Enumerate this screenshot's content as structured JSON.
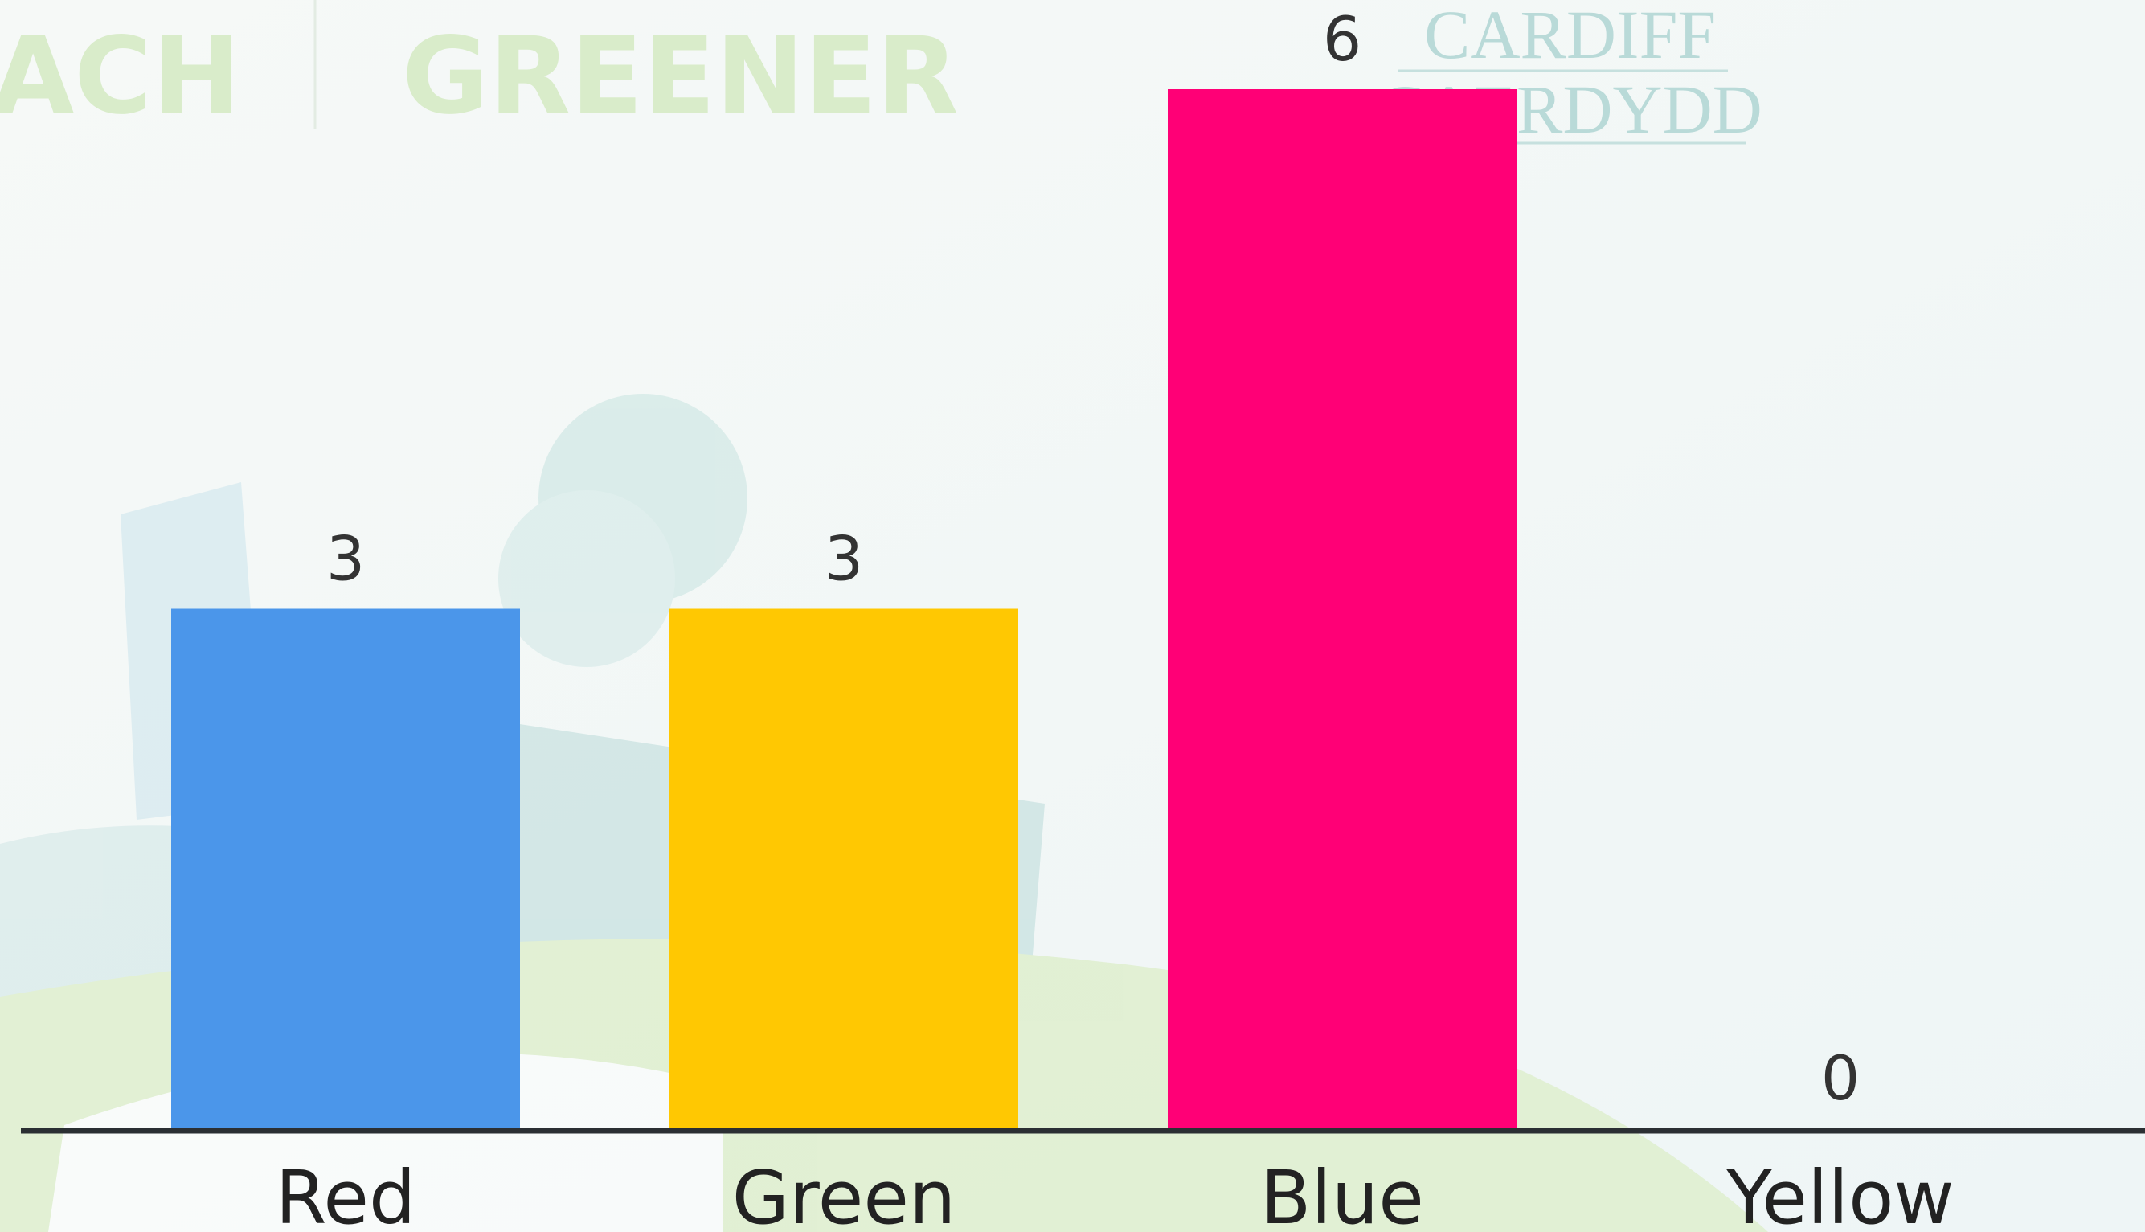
{
  "chart_data": {
    "type": "bar",
    "categories": [
      "Red",
      "Green",
      "Blue",
      "Yellow"
    ],
    "values": [
      3,
      3,
      6,
      0
    ],
    "colors": [
      "#4b96ea",
      "#ffc802",
      "#ff0076",
      "#f4d03f"
    ],
    "data_labels": true
  },
  "background": {
    "texts": [
      "ACH",
      "GREENER",
      "CARDIFF",
      "CAERDYDD"
    ]
  }
}
